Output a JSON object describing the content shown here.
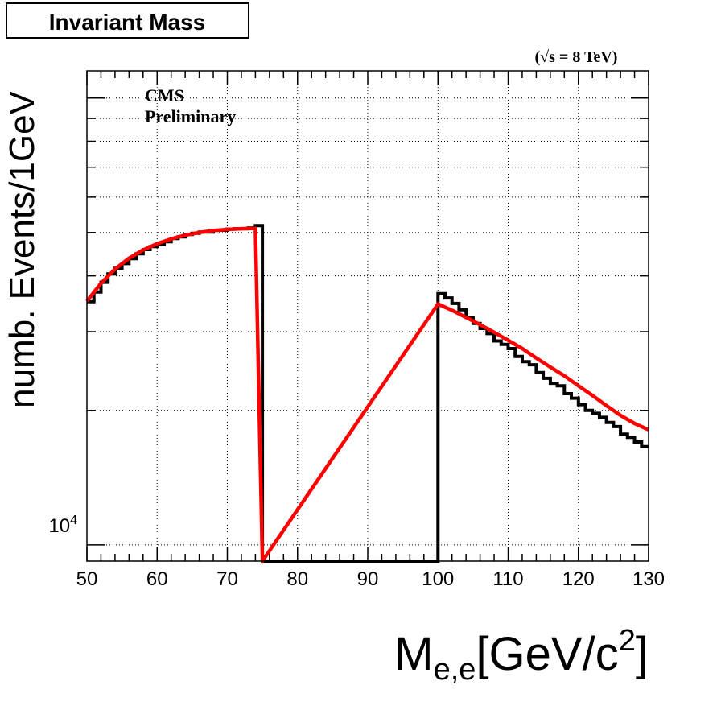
{
  "chart_data": {
    "type": "line",
    "title": "Invariant Mass",
    "energy_label": "(√s = 8 TeV)",
    "annotation": [
      "CMS",
      "Preliminary"
    ],
    "xlabel_main": "M",
    "xlabel_sub": "e,e",
    "xlabel_unit": "[GeV/c",
    "xlabel_sup": "2",
    "xlabel_close": "]",
    "ylabel": "numb. Events/1GeV",
    "xlim": [
      50,
      130
    ],
    "ylim": [
      9200,
      115000
    ],
    "yscale": "log",
    "grid": true,
    "x_ticks": [
      50,
      60,
      70,
      80,
      90,
      100,
      110,
      120,
      130
    ],
    "y_tick_label": {
      "base": "10",
      "exp": "4",
      "value": 10000
    },
    "colors": {
      "histogram": "#000000",
      "fit": "#ff0000"
    },
    "series": [
      {
        "style": "histogram",
        "x": [
          50,
          51,
          52,
          53,
          54,
          55,
          56,
          57,
          58,
          59,
          60,
          61,
          62,
          63,
          64,
          65,
          66,
          67,
          68,
          69,
          70,
          71,
          72,
          73,
          74,
          75,
          76,
          77,
          78,
          79,
          80,
          81,
          82,
          83,
          84,
          85,
          86,
          87,
          88,
          89,
          90,
          91,
          92,
          93,
          94,
          95,
          96,
          97,
          98,
          99,
          100,
          101,
          102,
          103,
          104,
          105,
          106,
          107,
          108,
          109,
          110,
          111,
          112,
          113,
          114,
          115,
          116,
          117,
          118,
          119,
          120,
          121,
          122,
          123,
          124,
          125,
          126,
          127,
          128,
          129
        ],
        "y": [
          35000,
          36800,
          38700,
          40400,
          41600,
          42600,
          43700,
          44800,
          45800,
          46500,
          47000,
          47700,
          48500,
          48900,
          49500,
          49800,
          50100,
          50100,
          50600,
          50600,
          50900,
          51000,
          51000,
          51200,
          51800,
          0,
          0,
          0,
          0,
          0,
          0,
          0,
          0,
          0,
          0,
          0,
          0,
          0,
          0,
          0,
          0,
          0,
          0,
          0,
          0,
          0,
          0,
          0,
          0,
          0,
          36500,
          35700,
          34700,
          33600,
          32300,
          31300,
          30500,
          29700,
          28600,
          28100,
          27500,
          26400,
          25700,
          25300,
          24300,
          23600,
          23000,
          22700,
          21800,
          21300,
          20600,
          20000,
          19700,
          19300,
          18800,
          18400,
          17700,
          17400,
          17000,
          16600
        ]
      },
      {
        "style": "fit",
        "x": [
          50,
          52,
          54,
          56,
          58,
          60,
          62,
          64,
          66,
          68,
          70,
          72,
          74,
          75,
          100,
          102,
          104,
          106,
          108,
          110,
          112,
          114,
          116,
          118,
          120,
          122,
          124,
          126,
          128,
          130
        ],
        "y": [
          35100,
          38500,
          41400,
          43800,
          45700,
          47200,
          48400,
          49300,
          50000,
          50500,
          50800,
          51000,
          51100,
          0,
          34600,
          33500,
          32300,
          31100,
          29900,
          28700,
          27500,
          26200,
          25000,
          23900,
          22700,
          21600,
          20500,
          19500,
          18700,
          18100
        ]
      }
    ]
  }
}
